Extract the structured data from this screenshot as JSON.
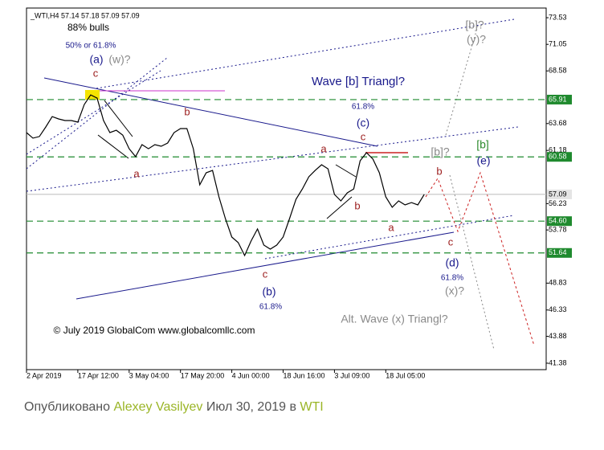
{
  "chart_data": {
    "type": "line",
    "header": "_WTI,H4  57.14 57.18 57.09 57.09",
    "x": [
      0,
      1,
      2,
      3,
      4,
      5,
      6,
      7,
      8,
      9,
      10,
      11,
      12,
      13,
      14,
      15,
      16,
      17,
      18,
      19,
      20,
      21,
      22,
      23,
      24,
      25,
      26,
      27,
      28,
      29,
      30,
      31,
      32,
      33,
      34,
      35,
      36,
      37,
      38,
      39,
      40,
      41,
      42,
      43,
      44,
      45,
      46,
      47,
      48,
      49,
      50,
      51,
      52,
      53,
      54,
      55,
      56,
      57,
      58,
      59,
      60,
      61,
      62
    ],
    "values": [
      62.84,
      62.32,
      62.47,
      63.36,
      64.33,
      64.11,
      63.96,
      63.96,
      63.81,
      65.45,
      66.35,
      66.05,
      63.96,
      62.84,
      63.06,
      62.61,
      61.34,
      60.6,
      61.72,
      61.34,
      61.72,
      61.57,
      61.87,
      62.84,
      63.21,
      63.21,
      61.34,
      57.98,
      59.1,
      59.32,
      56.86,
      54.84,
      53.12,
      52.6,
      51.4,
      52.75,
      53.87,
      52.37,
      52.0,
      52.37,
      53.12,
      54.84,
      56.63,
      57.6,
      58.73,
      59.32,
      59.85,
      59.47,
      57.08,
      56.48,
      57.23,
      57.6,
      60.22,
      60.97,
      60.37,
      59.1,
      56.86,
      55.89,
      56.48,
      56.11,
      56.33,
      56.11,
      57.09
    ],
    "color": "#000000",
    "xlim": [
      0,
      81
    ],
    "ylim": [
      40.78,
      74.43
    ],
    "xticks": [
      {
        "value": 0,
        "label": "2 Apr 2019"
      },
      {
        "value": 8,
        "label": "17 Apr 12:00"
      },
      {
        "value": 16,
        "label": "3 May 04:00"
      },
      {
        "value": 24,
        "label": "17 May 20:00"
      },
      {
        "value": 32,
        "label": "4 Jun 00:00"
      },
      {
        "value": 40,
        "label": "18 Jun 16:00"
      },
      {
        "value": 48,
        "label": "3 Jul 09:00"
      },
      {
        "value": 56,
        "label": "18 Jul 05:00"
      }
    ],
    "yticks": [
      73.53,
      71.05,
      68.58,
      63.68,
      61.18,
      56.23,
      53.78,
      48.83,
      46.33,
      43.88,
      41.38
    ],
    "levels": [
      65.91,
      60.58,
      54.6,
      51.64
    ],
    "level_labels": [
      "65.91",
      "60.58",
      "54.60",
      "51.64"
    ],
    "level_color": "#1f8a2e",
    "last_price": 57.09,
    "annotations": [
      "88% bulls",
      "50% or 61.8%",
      "(a)",
      "(w)?",
      "c",
      "b",
      "a",
      "Wave [b] Triangl?",
      "61.8%",
      "(c)",
      "c",
      "a",
      "b",
      "a",
      "c",
      "(b)",
      "61.8%",
      "[b]?",
      "(y)?",
      "[b]?",
      "[b]",
      "(e)",
      "b",
      "c",
      "(d)",
      "61.8%",
      "(x)?",
      "Alt. Wave (x) Triangl?",
      "© July 2019 GlobalCom www.globalcomllc.com"
    ]
  },
  "footer": {
    "prefix": "Опубликовано",
    "author": "Alexey Vasilyev",
    "middle": "Июл 30, 2019 в",
    "symbol": "WTI"
  }
}
